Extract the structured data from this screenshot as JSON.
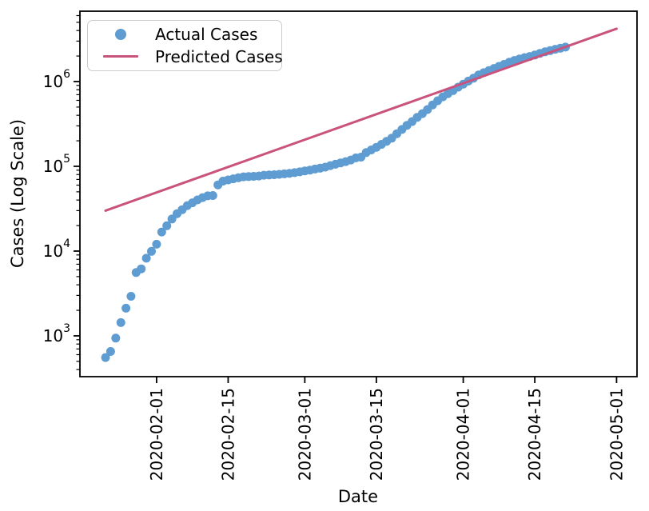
{
  "chart_data": {
    "type": "scatter",
    "title": "",
    "xlabel": "Date",
    "ylabel": "Cases (Log Scale)",
    "grid": false,
    "x_axis": {
      "scale": "date",
      "lim": [
        "2020-01-17",
        "2020-05-05"
      ],
      "tick_labels": [
        "2020-02-01",
        "2020-02-15",
        "2020-03-01",
        "2020-03-15",
        "2020-04-01",
        "2020-04-15",
        "2020-05-01"
      ],
      "tick_rotation_deg": 90
    },
    "y_axis": {
      "scale": "log",
      "lim": [
        330,
        6760000
      ],
      "tick_values": [
        1000,
        10000,
        100000,
        1000000
      ],
      "tick_labels": [
        "10³",
        "10⁴",
        "10⁵",
        "10⁶"
      ]
    },
    "legend": {
      "position": "upper left",
      "entries": [
        "Actual Cases",
        "Predicted Cases"
      ]
    },
    "series": [
      {
        "name": "Actual Cases",
        "type": "scatter",
        "marker": "circle",
        "color": "#5E9CD1",
        "dates": [
          "2020-01-22",
          "2020-01-23",
          "2020-01-24",
          "2020-01-25",
          "2020-01-26",
          "2020-01-27",
          "2020-01-28",
          "2020-01-29",
          "2020-01-30",
          "2020-01-31",
          "2020-02-01",
          "2020-02-02",
          "2020-02-03",
          "2020-02-04",
          "2020-02-05",
          "2020-02-06",
          "2020-02-07",
          "2020-02-08",
          "2020-02-09",
          "2020-02-10",
          "2020-02-11",
          "2020-02-12",
          "2020-02-13",
          "2020-02-14",
          "2020-02-15",
          "2020-02-16",
          "2020-02-17",
          "2020-02-18",
          "2020-02-19",
          "2020-02-20",
          "2020-02-21",
          "2020-02-22",
          "2020-02-23",
          "2020-02-24",
          "2020-02-25",
          "2020-02-26",
          "2020-02-27",
          "2020-02-28",
          "2020-02-29",
          "2020-03-01",
          "2020-03-02",
          "2020-03-03",
          "2020-03-04",
          "2020-03-05",
          "2020-03-06",
          "2020-03-07",
          "2020-03-08",
          "2020-03-09",
          "2020-03-10",
          "2020-03-11",
          "2020-03-12",
          "2020-03-13",
          "2020-03-14",
          "2020-03-15",
          "2020-03-16",
          "2020-03-17",
          "2020-03-18",
          "2020-03-19",
          "2020-03-20",
          "2020-03-21",
          "2020-03-22",
          "2020-03-23",
          "2020-03-24",
          "2020-03-25",
          "2020-03-26",
          "2020-03-27",
          "2020-03-28",
          "2020-03-29",
          "2020-03-30",
          "2020-03-31",
          "2020-04-01",
          "2020-04-02",
          "2020-04-03",
          "2020-04-04",
          "2020-04-05",
          "2020-04-06",
          "2020-04-07",
          "2020-04-08",
          "2020-04-09",
          "2020-04-10",
          "2020-04-11",
          "2020-04-12",
          "2020-04-13",
          "2020-04-14",
          "2020-04-15",
          "2020-04-16",
          "2020-04-17",
          "2020-04-18",
          "2020-04-19",
          "2020-04-20",
          "2020-04-21"
        ],
        "values": [
          555,
          654,
          941,
          1434,
          2118,
          2927,
          5578,
          6166,
          8234,
          9927,
          12038,
          16787,
          19881,
          23892,
          27635,
          30817,
          34391,
          37120,
          40150,
          42762,
          44802,
          45221,
          60368,
          66885,
          69030,
          71224,
          73258,
          75136,
          75639,
          76197,
          76823,
          78579,
          78965,
          79568,
          80413,
          81395,
          82754,
          84120,
          86011,
          88369,
          90306,
          92840,
          95120,
          97886,
          101801,
          105847,
          109821,
          113590,
          118620,
          125875,
          128352,
          145205,
          156101,
          167454,
          181574,
          197102,
          214821,
          242570,
          272208,
          304507,
          336953,
          378235,
          418045,
          467653,
          529591,
          593291,
          660693,
          720140,
          782389,
          857487,
          932605,
          1013466,
          1095917,
          1197405,
          1272115,
          1345101,
          1426096,
          1511104,
          1595350,
          1691719,
          1771514,
          1846680,
          1917320,
          1976191,
          2056054,
          2152437,
          2240190,
          2317759,
          2401378,
          2472259,
          2549123
        ]
      },
      {
        "name": "Predicted Cases",
        "type": "line",
        "color": "#C9537C",
        "note": "straight line in log space (exponential trend); endpoints given",
        "dates": [
          "2020-01-22",
          "2020-05-01"
        ],
        "values": [
          30000,
          4200000
        ]
      }
    ]
  }
}
